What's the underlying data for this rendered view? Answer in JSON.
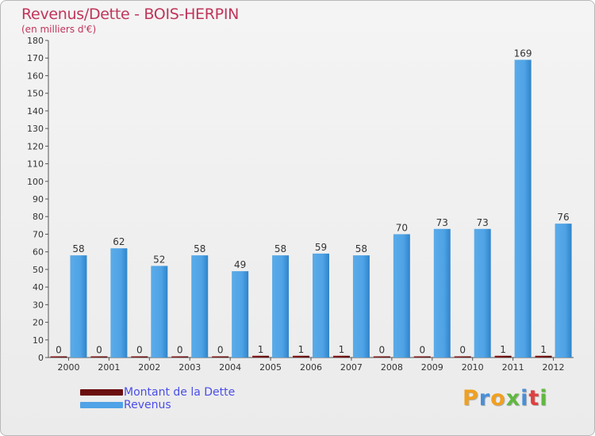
{
  "header": {
    "title": "Revenus/Dette - BOIS-HERPIN",
    "subtitle": "(en milliers d'€)"
  },
  "legend": {
    "items": [
      {
        "label": "Montant de la Dette",
        "color": "#6b0f0f"
      },
      {
        "label": "Revenus",
        "color": "#4fa3e6"
      }
    ]
  },
  "logo": {
    "text": "Proxiti",
    "letter_colors": [
      "#f0a020",
      "#4a8fd8",
      "#f0a020",
      "#60b840",
      "#4a8fd8",
      "#e04040",
      "#60b840"
    ]
  },
  "chart_data": {
    "type": "bar",
    "title": "Revenus/Dette - BOIS-HERPIN",
    "subtitle": "(en milliers d'€)",
    "categories": [
      "2000",
      "2001",
      "2002",
      "2003",
      "2004",
      "2005",
      "2006",
      "2007",
      "2008",
      "2009",
      "2010",
      "2011",
      "2012"
    ],
    "series": [
      {
        "name": "Montant de la Dette",
        "color": "#6b0f0f",
        "values": [
          0,
          0,
          0,
          0,
          0,
          1,
          1,
          1,
          0,
          0,
          0,
          1,
          1
        ]
      },
      {
        "name": "Revenus",
        "color": "#4fa3e6",
        "values": [
          58,
          62,
          52,
          58,
          49,
          58,
          59,
          58,
          70,
          73,
          73,
          169,
          76
        ]
      }
    ],
    "ylim": [
      0,
      180
    ],
    "yticks": [
      0,
      10,
      20,
      30,
      40,
      50,
      60,
      70,
      80,
      90,
      100,
      110,
      120,
      130,
      140,
      150,
      160,
      170,
      180
    ],
    "grid": false,
    "legend_position": "bottom-left"
  }
}
